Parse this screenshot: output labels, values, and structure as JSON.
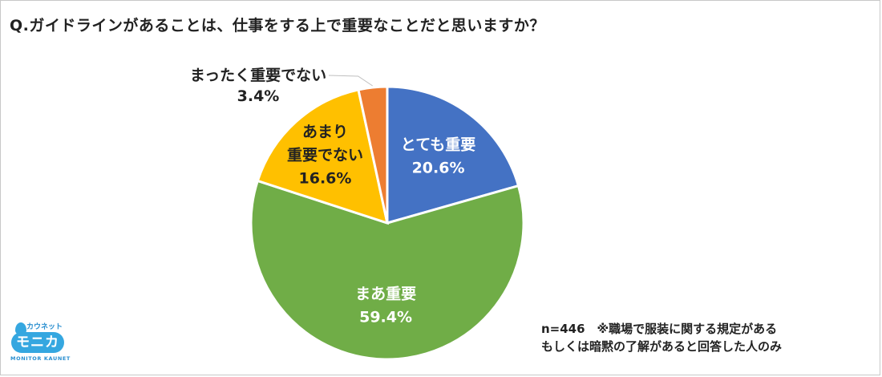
{
  "title": "Q.ガイドラインがあることは、仕事をする上で重要なことだと思いますか？",
  "note": {
    "line1": "n=446　※職場で服装に関する規定がある",
    "line2": "もしくは暗黙の了解があると回答した人のみ"
  },
  "logo": {
    "kana": "カウネット",
    "main": "モニカ",
    "en": "MONITOR KAUNET"
  },
  "chart_data": {
    "type": "pie",
    "title": "Q.ガイドラインがあることは、仕事をする上で重要なことだと思いますか？",
    "slices": [
      {
        "label": "とても重要",
        "value": 20.6,
        "value_label": "20.6%",
        "color": "#4472c4",
        "label_color": "#ffffff"
      },
      {
        "label": "まあ重要",
        "value": 59.4,
        "value_label": "59.4%",
        "color": "#70ad47",
        "label_color": "#ffffff"
      },
      {
        "label": "あまり\n重要でない",
        "value": 16.6,
        "value_label": "16.6%",
        "color": "#ffc000",
        "label_color": "#222222"
      },
      {
        "label": "まったく重要でない",
        "value": 3.4,
        "value_label": "3.4%",
        "color": "#ed7d31",
        "label_color": "#222222"
      }
    ],
    "start": "12 o'clock",
    "direction": "clockwise"
  }
}
